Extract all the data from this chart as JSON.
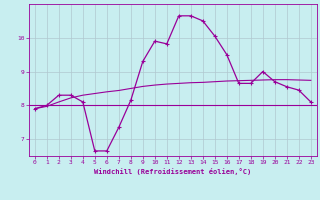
{
  "xlabel": "Windchill (Refroidissement éolien,°C)",
  "bg_color": "#c8eef0",
  "line_color": "#990099",
  "grid_color": "#b0c8d0",
  "xlim": [
    -0.5,
    23.5
  ],
  "ylim": [
    6.5,
    11.0
  ],
  "yticks": [
    7,
    8,
    9,
    10
  ],
  "xticks": [
    0,
    1,
    2,
    3,
    4,
    5,
    6,
    7,
    8,
    9,
    10,
    11,
    12,
    13,
    14,
    15,
    16,
    17,
    18,
    19,
    20,
    21,
    22,
    23
  ],
  "x": [
    0,
    1,
    2,
    3,
    4,
    5,
    6,
    7,
    8,
    9,
    10,
    11,
    12,
    13,
    14,
    15,
    16,
    17,
    18,
    19,
    20,
    21,
    22,
    23
  ],
  "y_main": [
    7.9,
    8.0,
    8.3,
    8.3,
    8.1,
    6.65,
    6.65,
    7.35,
    8.15,
    9.3,
    9.9,
    9.82,
    10.65,
    10.65,
    10.5,
    10.05,
    9.5,
    8.65,
    8.65,
    9.0,
    8.7,
    8.55,
    8.45,
    8.1
  ],
  "y_hline": 8.0,
  "y_smooth": [
    7.9,
    7.97,
    8.1,
    8.22,
    8.3,
    8.35,
    8.4,
    8.44,
    8.5,
    8.56,
    8.6,
    8.63,
    8.65,
    8.67,
    8.68,
    8.7,
    8.72,
    8.73,
    8.74,
    8.75,
    8.76,
    8.76,
    8.75,
    8.74
  ]
}
